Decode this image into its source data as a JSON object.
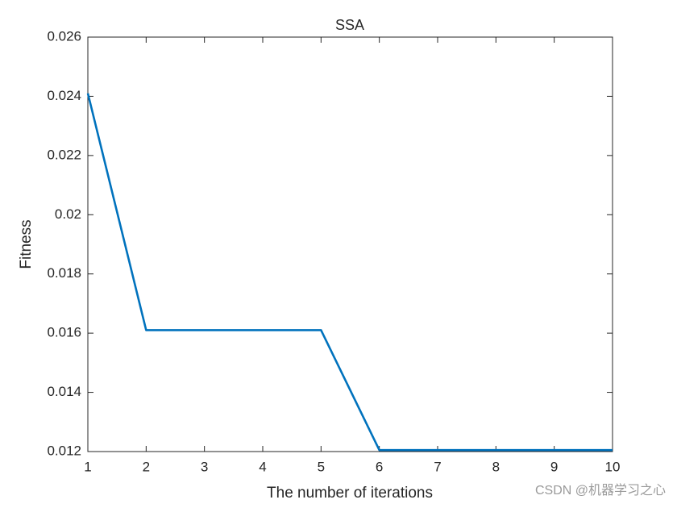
{
  "chart_data": {
    "type": "line",
    "title": "SSA",
    "xlabel": "The number of iterations",
    "ylabel": "Fitness",
    "x": [
      1,
      2,
      3,
      4,
      5,
      6,
      7,
      8,
      9,
      10
    ],
    "values": [
      0.0241,
      0.0161,
      0.0161,
      0.0161,
      0.0161,
      0.01205,
      0.01205,
      0.01205,
      0.01205,
      0.01205
    ],
    "color": "#0072bd",
    "xlim": [
      1,
      10
    ],
    "xticks": [
      1,
      2,
      3,
      4,
      5,
      6,
      7,
      8,
      9,
      10
    ],
    "ylim": [
      0.012,
      0.026
    ],
    "yticks": [
      0.012,
      0.014,
      0.016,
      0.018,
      0.02,
      0.022,
      0.024,
      0.026
    ],
    "grid": false,
    "watermark": "CSDN @机器学习之心"
  }
}
